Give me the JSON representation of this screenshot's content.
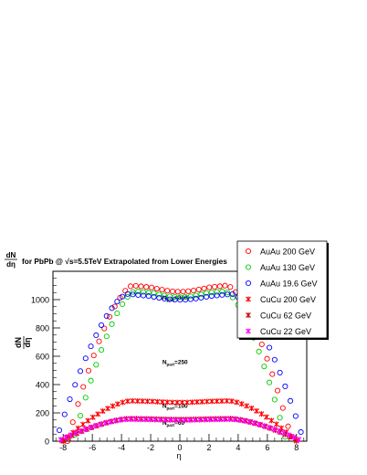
{
  "chart_data": {
    "type": "scatter",
    "title": "for PbPb @ √s=5.5TeV Extrapolated from Lower Energies",
    "title_prefix": "dN/dη",
    "xlabel": "η",
    "ylabel": "dN/dη",
    "xlim": [
      -8.7,
      8.7
    ],
    "ylim": [
      0,
      1200
    ],
    "x_ticks": [
      -8,
      -6,
      -4,
      -2,
      0,
      2,
      4,
      6,
      8
    ],
    "y_ticks": [
      0,
      200,
      400,
      600,
      800,
      1000
    ],
    "grid": false,
    "legend_position": "top-right",
    "annotations": [
      {
        "text": "N",
        "sub": "part",
        "value": "=360",
        "x": -1.2,
        "y": 1000
      },
      {
        "text": "N",
        "sub": "part",
        "value": "=250",
        "x": -1.2,
        "y": 545
      },
      {
        "text": "N",
        "sub": "part",
        "value": "=100",
        "x": -1.2,
        "y": 235
      },
      {
        "text": "N",
        "sub": "part",
        "value": "=60",
        "x": -1.2,
        "y": 115
      }
    ],
    "series": [
      {
        "name": "AuAu 200 GeV",
        "color": "#ff0000",
        "marker": "open-circle",
        "peak": 1100,
        "edge": 7.7
      },
      {
        "name": "AuAu 130 GeV",
        "color": "#00cc00",
        "marker": "open-circle",
        "peak": 1060,
        "edge": 7.3
      },
      {
        "name": "AuAu 19.6 GeV",
        "color": "#0000ff",
        "marker": "open-circle",
        "peak": 1040,
        "edge": 8.5
      },
      {
        "name": "CuCu 200 GeV",
        "color": "#ff0000",
        "marker": "star",
        "peak": 285,
        "edge": 8.0
      },
      {
        "name": "CuCu 62 GeV",
        "color": "#cc0000",
        "marker": "star",
        "peak": 160,
        "edge": 8.2
      },
      {
        "name": "CuCu 22 GeV",
        "color": "#ff00ff",
        "marker": "star",
        "peak": 155,
        "edge": 8.4
      }
    ]
  }
}
